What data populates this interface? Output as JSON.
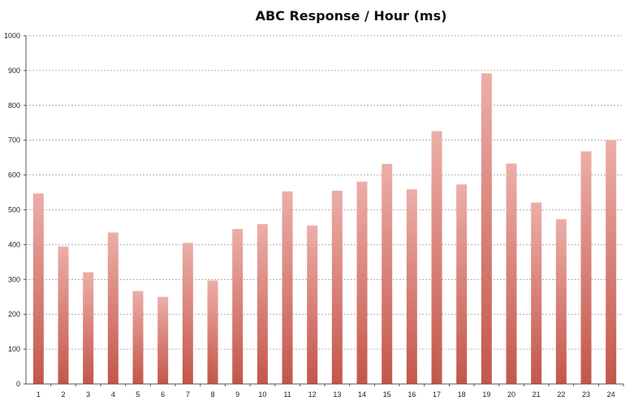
{
  "chart_data": {
    "type": "bar",
    "title": "ABC Response / Hour (ms)",
    "xlabel": "",
    "ylabel": "",
    "categories": [
      "1",
      "2",
      "3",
      "4",
      "5",
      "6",
      "7",
      "8",
      "9",
      "10",
      "11",
      "12",
      "13",
      "14",
      "15",
      "16",
      "17",
      "18",
      "19",
      "20",
      "21",
      "22",
      "23",
      "24"
    ],
    "series": [
      {
        "values": [
          547,
          395,
          321,
          435,
          267,
          250,
          405,
          297,
          445,
          459,
          553,
          455,
          555,
          581,
          632,
          559,
          726,
          573,
          892,
          633,
          521,
          473,
          668,
          700
        ]
      }
    ],
    "ylim": [
      0,
      1000
    ],
    "yticks": [
      "0",
      "100",
      "200",
      "300",
      "400",
      "500",
      "600",
      "700",
      "800",
      "900",
      "1000"
    ],
    "grid": true,
    "legend": "none",
    "colors": {
      "bar_top": "#ecaea8",
      "bar_bottom": "#c4564a",
      "grid": "#9a9a9a",
      "axis": "#555555"
    }
  }
}
